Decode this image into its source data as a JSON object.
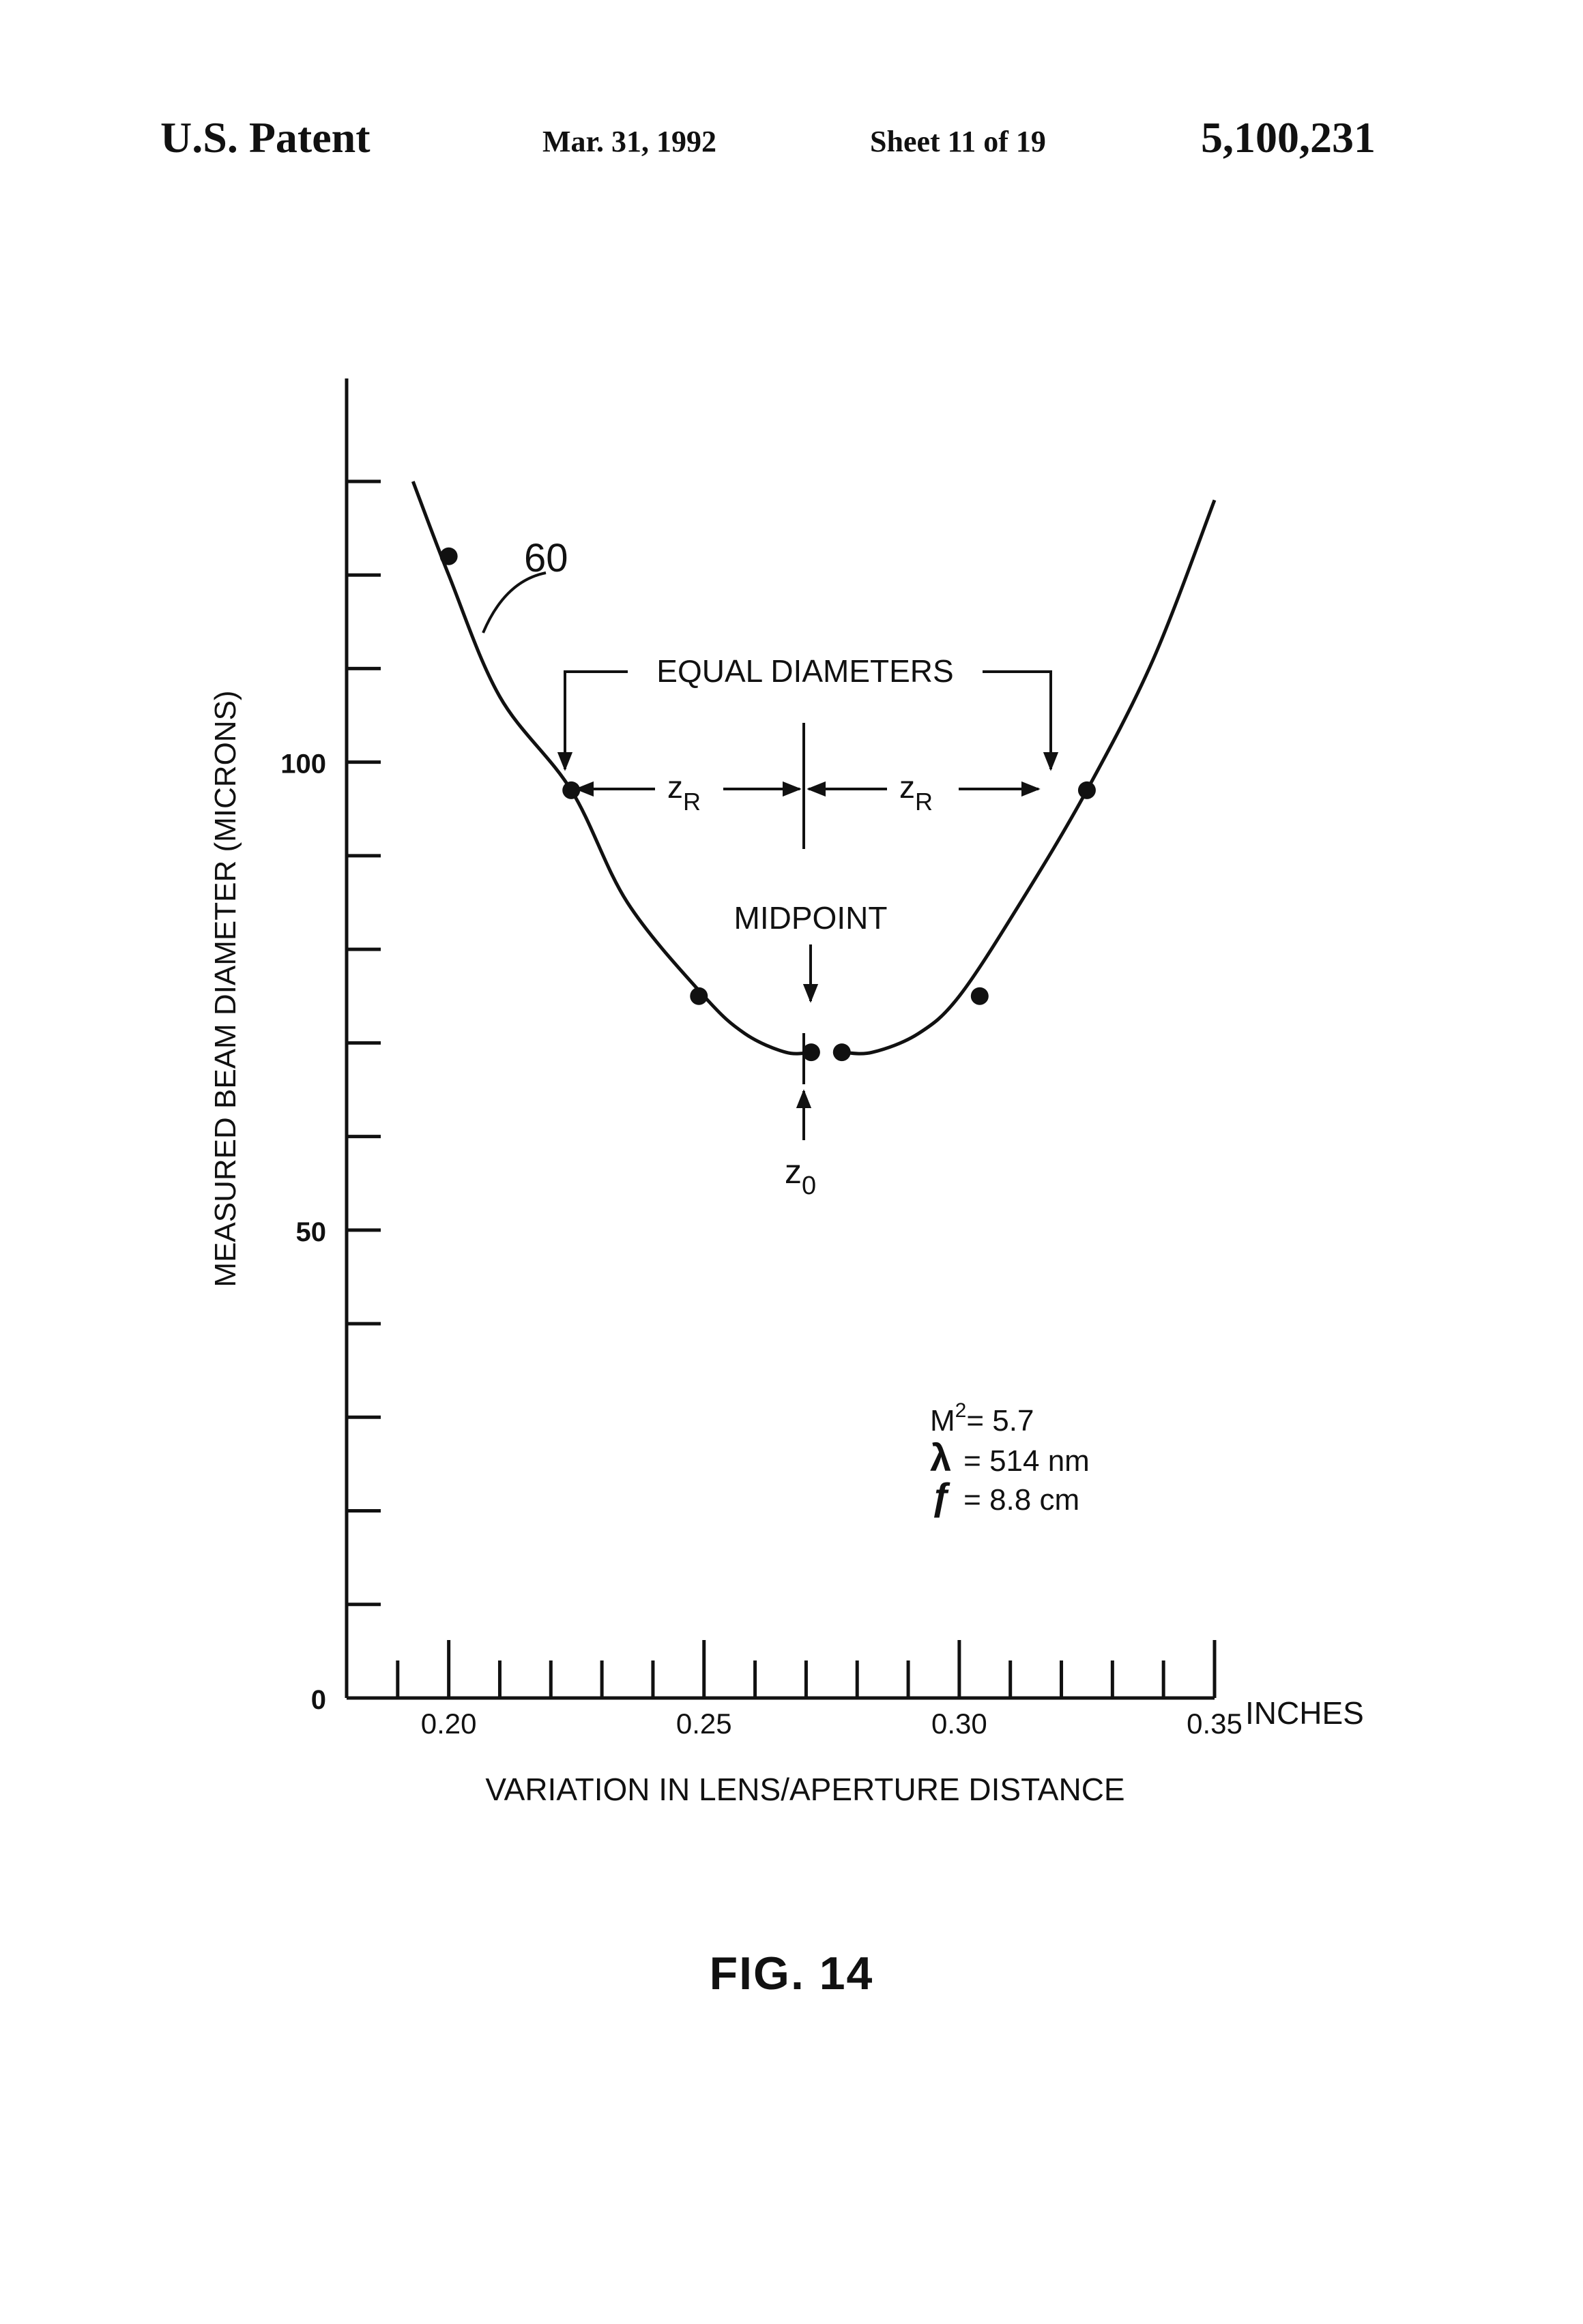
{
  "header": {
    "left": "U.S. Patent",
    "date": "Mar. 31, 1992",
    "sheet": "Sheet 11 of 19",
    "number": "5,100,231"
  },
  "figure_label": "FIG. 14",
  "chart_data": {
    "type": "line",
    "xlabel": "VARIATION IN LENS/APERTURE DISTANCE",
    "x_unit": "INCHES",
    "ylabel": "MEASURED BEAM DIAMETER (MICRONS)",
    "xlim": [
      0.18,
      0.35
    ],
    "ylim": [
      0,
      141
    ],
    "x_tick_labels": [
      "0.20",
      "0.25",
      "0.30",
      "0.35"
    ],
    "x_tick_values": [
      0.2,
      0.25,
      0.3,
      0.35
    ],
    "x_minor_step": 0.01,
    "y_tick_labels": [
      "0",
      "50",
      "100"
    ],
    "y_tick_values": [
      0,
      50,
      100
    ],
    "y_minor_step": 10,
    "curve_label": "60",
    "curve_left": [
      [
        0.193,
        130
      ],
      [
        0.2,
        120
      ],
      [
        0.21,
        107
      ],
      [
        0.224,
        97
      ],
      [
        0.235,
        85
      ],
      [
        0.25,
        75
      ],
      [
        0.258,
        71
      ],
      [
        0.266,
        69
      ],
      [
        0.271,
        69
      ]
    ],
    "curve_right": [
      [
        0.277,
        69
      ],
      [
        0.283,
        69
      ],
      [
        0.292,
        71
      ],
      [
        0.3,
        75
      ],
      [
        0.312,
        85
      ],
      [
        0.325,
        97
      ],
      [
        0.338,
        111
      ],
      [
        0.35,
        128
      ]
    ],
    "points": [
      {
        "x": 0.2,
        "y": 122
      },
      {
        "x": 0.224,
        "y": 97
      },
      {
        "x": 0.249,
        "y": 75
      },
      {
        "x": 0.271,
        "y": 69
      },
      {
        "x": 0.277,
        "y": 69
      },
      {
        "x": 0.304,
        "y": 75
      },
      {
        "x": 0.325,
        "y": 97
      }
    ],
    "annotations": {
      "equal_diameters": "EQUAL DIAMETERS",
      "zr_left": "z",
      "zr_left_sub": "R",
      "zr_right": "z",
      "zr_right_sub": "R",
      "midpoint": "MIDPOINT",
      "z0": "z",
      "z0_sub": "0"
    },
    "legend": {
      "line1_symbol": "M",
      "line1_sup": "2",
      "line1_value": "= 5.7",
      "line2_symbol": "λ",
      "line2_value": "= 514 nm",
      "line3_symbol": "ƒ",
      "line3_value": "= 8.8 cm"
    }
  }
}
